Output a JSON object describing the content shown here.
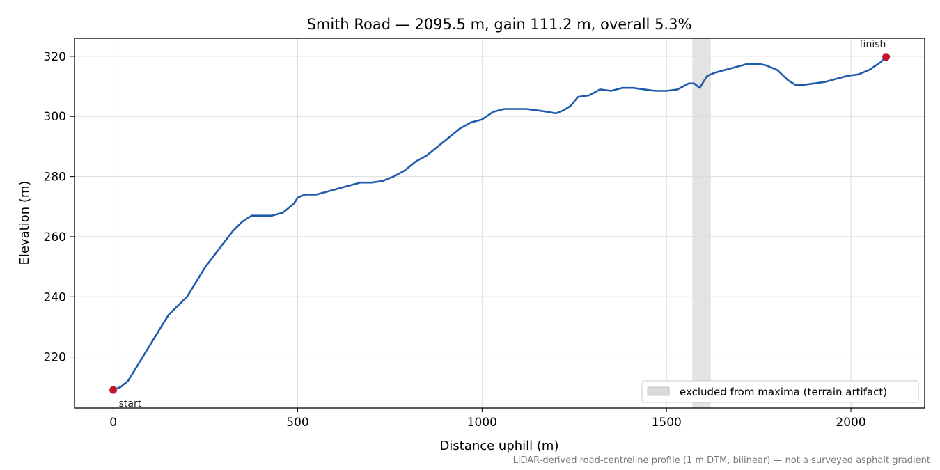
{
  "chart_data": {
    "type": "line",
    "title": "Smith Road — 2095.5 m, gain 111.2 m, overall 5.3%",
    "xlabel": "Distance uphill (m)",
    "ylabel": "Elevation (m)",
    "xlim": [
      -105,
      2200
    ],
    "ylim": [
      203,
      326
    ],
    "xticks": [
      0,
      500,
      1000,
      1500,
      2000
    ],
    "yticks": [
      220,
      240,
      260,
      280,
      300,
      320
    ],
    "grid": true,
    "line_color": "#1f5aad",
    "point_color": "#c0182a",
    "band_color": "#d9d9d9",
    "series": [
      {
        "x": [
          0,
          20,
          40,
          60,
          80,
          100,
          125,
          150,
          175,
          200,
          225,
          250,
          275,
          300,
          325,
          350,
          375,
          400,
          430,
          460,
          490,
          500,
          520,
          550,
          580,
          610,
          640,
          670,
          700,
          730,
          760,
          790,
          820,
          850,
          880,
          910,
          940,
          970,
          1000,
          1030,
          1060,
          1090,
          1120,
          1150,
          1180,
          1200,
          1220,
          1240,
          1260,
          1290,
          1320,
          1350,
          1380,
          1410,
          1440,
          1470,
          1500,
          1530,
          1560,
          1575,
          1590,
          1610,
          1630,
          1660,
          1690,
          1720,
          1750,
          1770,
          1800,
          1830,
          1850,
          1870,
          1900,
          1930,
          1960,
          1990,
          2020,
          2050,
          2080,
          2095.5
        ],
        "y": [
          209,
          210,
          212,
          216,
          220,
          224,
          229,
          234,
          237,
          240,
          245,
          250,
          254,
          258,
          262,
          265,
          267,
          267,
          267,
          268,
          271,
          273,
          274,
          274,
          275,
          276,
          277,
          278,
          278,
          278.5,
          280,
          282,
          285,
          287,
          290,
          293,
          296,
          298,
          299,
          301.5,
          302.5,
          302.5,
          302.5,
          302,
          301.5,
          301,
          302,
          303.5,
          306.5,
          307,
          309,
          308.5,
          309.5,
          309.5,
          309,
          308.5,
          308.5,
          309,
          311,
          311,
          309.5,
          313.5,
          314.5,
          315.5,
          316.5,
          317.5,
          317.5,
          317,
          315.5,
          312,
          310.5,
          310.5,
          311,
          311.5,
          312.5,
          313.5,
          314,
          315.5,
          318,
          319.8
        ]
      }
    ],
    "points": [
      {
        "label": "start",
        "x": 0,
        "y": 209
      },
      {
        "label": "finish",
        "x": 2095.5,
        "y": 319.8
      }
    ],
    "excluded_band": {
      "x": [
        1570,
        1620
      ],
      "label": "excluded from maxima (terrain artifact)"
    },
    "legend_placement": "lower-right",
    "footnote": "LiDAR-derived road-centreline profile (1 m DTM, bilinear) — not a surveyed asphalt gradient"
  }
}
